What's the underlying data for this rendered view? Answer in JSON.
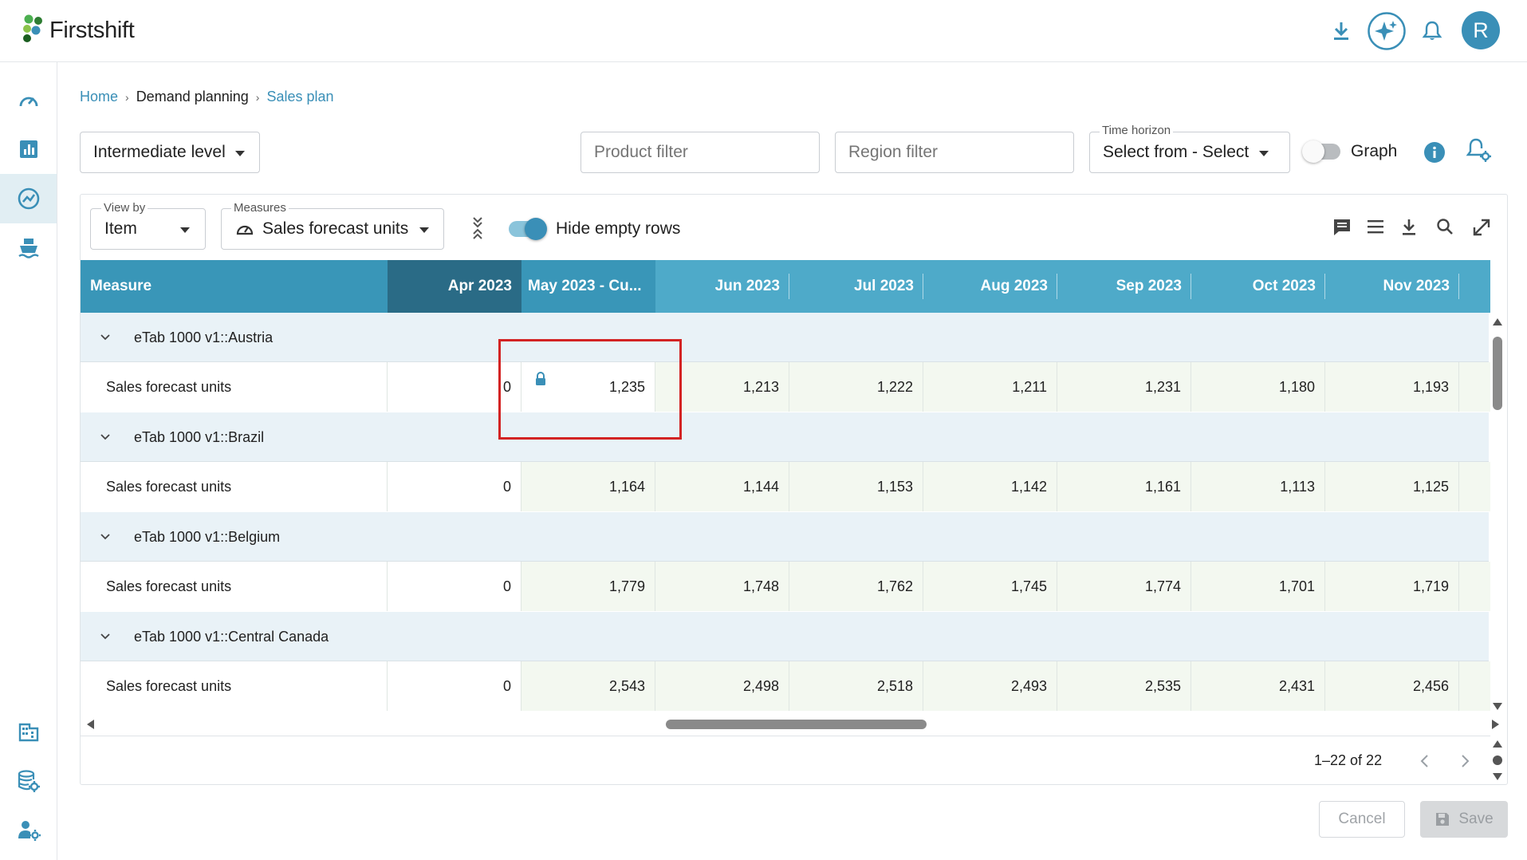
{
  "app": {
    "brand": "Firstshift",
    "user_initial": "R"
  },
  "breadcrumb": {
    "home": "Home",
    "section": "Demand planning",
    "current": "Sales plan"
  },
  "filters": {
    "level": "Intermediate level",
    "product_placeholder": "Product filter",
    "region_placeholder": "Region filter",
    "time_horizon_label": "Time horizon",
    "time_horizon_value": "Select from - Select",
    "graph_label": "Graph"
  },
  "toolbar": {
    "view_by_label": "View by",
    "view_by_value": "Item",
    "measures_label": "Measures",
    "measures_value": "Sales forecast units",
    "hide_empty_label": "Hide empty rows"
  },
  "grid": {
    "measure_header": "Measure",
    "columns": [
      "Apr 2023",
      "May 2023 - Cu...",
      "Jun 2023",
      "Jul 2023",
      "Aug 2023",
      "Sep 2023",
      "Oct 2023",
      "Nov 2023"
    ],
    "groups": [
      {
        "name": "eTab 1000 v1::Austria",
        "measure": "Sales forecast units",
        "values": [
          "0",
          "1,235",
          "1,213",
          "1,222",
          "1,211",
          "1,231",
          "1,180",
          "1,193"
        ]
      },
      {
        "name": "eTab 1000 v1::Brazil",
        "measure": "Sales forecast units",
        "values": [
          "0",
          "1,164",
          "1,144",
          "1,153",
          "1,142",
          "1,161",
          "1,113",
          "1,125"
        ]
      },
      {
        "name": "eTab 1000 v1::Belgium",
        "measure": "Sales forecast units",
        "values": [
          "0",
          "1,779",
          "1,748",
          "1,762",
          "1,745",
          "1,774",
          "1,701",
          "1,719"
        ]
      },
      {
        "name": "eTab 1000 v1::Central Canada",
        "measure": "Sales forecast units",
        "values": [
          "0",
          "2,543",
          "2,498",
          "2,518",
          "2,493",
          "2,535",
          "2,431",
          "2,456"
        ]
      }
    ]
  },
  "pagination": {
    "range_text": "1–22 of 22"
  },
  "footer": {
    "cancel_label": "Cancel",
    "save_label": "Save"
  },
  "colors": {
    "accent": "#3a8fb7",
    "header_bg": "#4eaac9",
    "header_dark": "#2a6b86",
    "header_mid": "#3996b8",
    "row_group_bg": "#e9f2f7",
    "editable_cell_bg": "#f3f8f0",
    "highlight_box": "#d32323"
  }
}
